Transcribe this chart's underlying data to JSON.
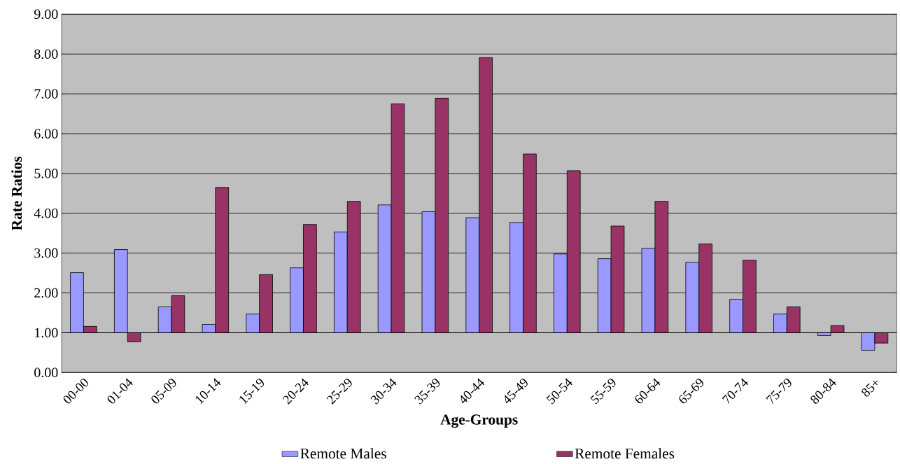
{
  "chart_data": {
    "type": "bar",
    "xlabel": "Age-Groups",
    "ylabel": "Rate Ratios",
    "categories": [
      "00-00",
      "01-04",
      "05-09",
      "10-14",
      "15-19",
      "20-24",
      "25-29",
      "30-34",
      "35-39",
      "40-44",
      "45-49",
      "50-54",
      "55-59",
      "60-64",
      "65-69",
      "70-74",
      "75-79",
      "80-84",
      "85+"
    ],
    "series": [
      {
        "name": "Remote Males",
        "color": "#9999ff",
        "base": [
          1,
          1,
          1,
          1,
          1,
          1,
          1,
          1,
          1,
          1,
          1,
          1,
          1,
          1,
          1,
          1,
          1,
          1,
          1
        ],
        "values": [
          1.51,
          2.09,
          0.65,
          0.21,
          0.47,
          1.63,
          2.53,
          3.21,
          3.04,
          2.89,
          2.77,
          1.98,
          1.86,
          2.12,
          1.77,
          0.84,
          0.47,
          -0.07,
          -0.44
        ]
      },
      {
        "name": "Remote Females",
        "color": "#993366",
        "base": [
          1,
          1,
          1,
          1,
          1,
          1,
          1,
          1,
          1,
          1,
          1,
          1,
          1,
          1,
          1,
          1,
          1,
          1,
          1
        ],
        "values": [
          0.16,
          -0.23,
          0.93,
          3.65,
          1.46,
          2.72,
          3.3,
          5.75,
          5.89,
          6.91,
          4.49,
          4.07,
          2.68,
          3.3,
          2.23,
          1.82,
          0.65,
          0.18,
          -0.26
        ]
      }
    ],
    "ylim": [
      0,
      9
    ],
    "yticks": [
      {
        "value": 0,
        "label": "0.00"
      },
      {
        "value": 1,
        "label": "1.00"
      },
      {
        "value": 2,
        "label": "2.00"
      },
      {
        "value": 3,
        "label": "3.00"
      },
      {
        "value": 4,
        "label": "4.00"
      },
      {
        "value": 5,
        "label": "5.00"
      },
      {
        "value": 6,
        "label": "6.00"
      },
      {
        "value": 7,
        "label": "7.00"
      },
      {
        "value": 8,
        "label": "8.00"
      },
      {
        "value": 9,
        "label": "9.00"
      }
    ],
    "grid": "y",
    "legend": "bottom"
  }
}
